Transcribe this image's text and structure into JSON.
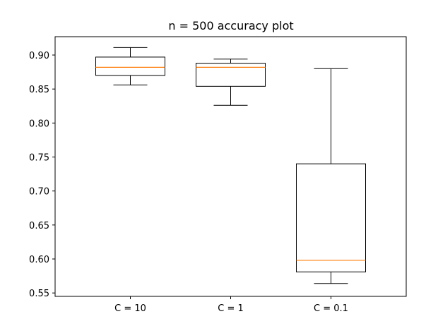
{
  "chart_data": {
    "type": "box",
    "title": "n = 500 accuracy plot",
    "xlabel": "",
    "ylabel": "",
    "categories": [
      "C = 10",
      "C = 1",
      "C = 0.1"
    ],
    "boxes": [
      {
        "whisker_low": 0.856,
        "q1": 0.87,
        "median": 0.882,
        "q3": 0.897,
        "whisker_high": 0.911
      },
      {
        "whisker_low": 0.826,
        "q1": 0.854,
        "median": 0.882,
        "q3": 0.888,
        "whisker_high": 0.894
      },
      {
        "whisker_low": 0.564,
        "q1": 0.581,
        "median": 0.598,
        "q3": 0.74,
        "whisker_high": 0.88
      }
    ],
    "ylim": [
      0.545,
      0.927
    ],
    "yticks": [
      0.55,
      0.6,
      0.65,
      0.7,
      0.75,
      0.8,
      0.85,
      0.9
    ],
    "ytick_labels": [
      "0.55",
      "0.60",
      "0.65",
      "0.70",
      "0.75",
      "0.80",
      "0.85",
      "0.90"
    ],
    "grid": false,
    "colors": {
      "box": "#000000",
      "median": "#ff7f0e",
      "background": "#ffffff"
    }
  }
}
